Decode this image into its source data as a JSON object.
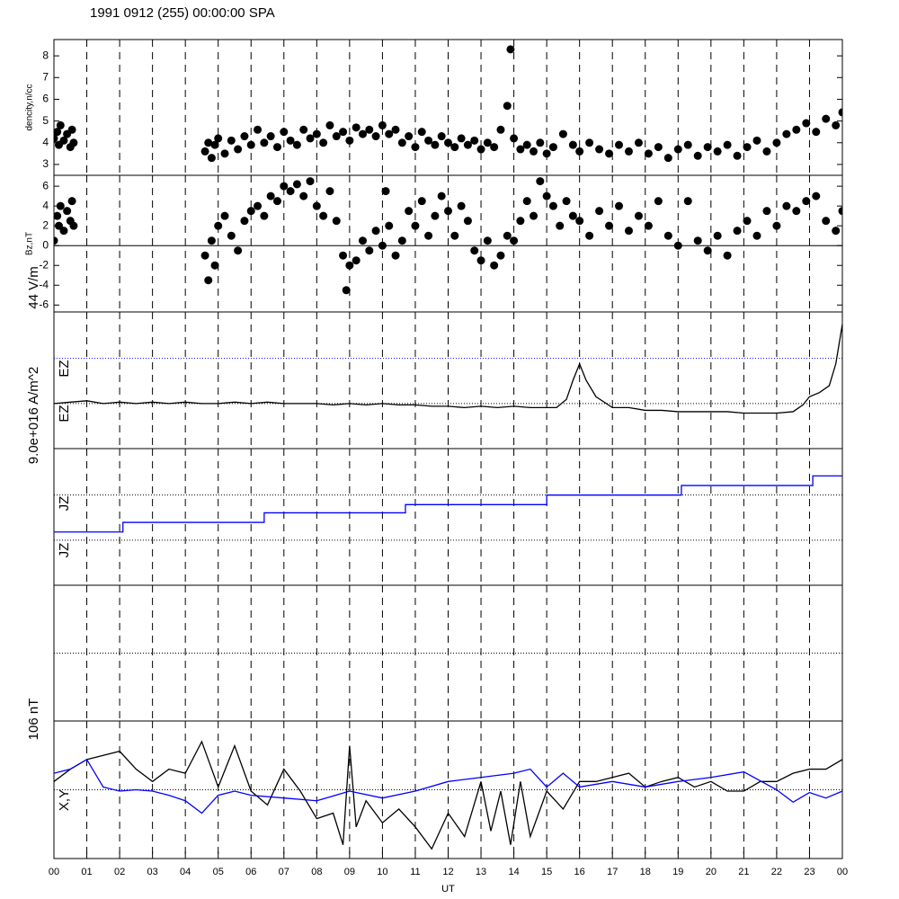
{
  "chart_data": [
    {
      "type": "scatter",
      "title": "1991 0912 (255) 00:00:00 SPA",
      "ylabel": "dencity,n/cc",
      "xlim": [
        0,
        24
      ],
      "ylim": [
        2.5,
        8.75
      ],
      "yticks": [
        3,
        4,
        5,
        6,
        7,
        8
      ],
      "color": "#000000",
      "x": [
        0,
        0.1,
        0.15,
        0.2,
        0.3,
        0.4,
        0.5,
        0.55,
        0.6,
        4.6,
        4.7,
        4.8,
        4.9,
        5.0,
        5.2,
        5.4,
        5.6,
        5.8,
        6.0,
        6.2,
        6.4,
        6.6,
        6.8,
        7.0,
        7.2,
        7.4,
        7.6,
        7.8,
        8.0,
        8.2,
        8.4,
        8.6,
        8.8,
        9.0,
        9.2,
        9.4,
        9.6,
        9.8,
        10.0,
        10.2,
        10.4,
        10.6,
        10.8,
        11.0,
        11.2,
        11.4,
        11.6,
        11.8,
        12.0,
        12.2,
        12.4,
        12.6,
        12.8,
        13.0,
        13.2,
        13.4,
        13.6,
        13.8,
        13.9,
        14.0,
        14.2,
        14.4,
        14.6,
        14.8,
        15.0,
        15.2,
        15.5,
        15.8,
        16.0,
        16.3,
        16.6,
        16.9,
        17.2,
        17.5,
        17.8,
        18.1,
        18.4,
        18.7,
        19.0,
        19.3,
        19.6,
        19.9,
        20.2,
        20.5,
        20.8,
        21.1,
        21.4,
        21.7,
        22.0,
        22.3,
        22.6,
        22.9,
        23.2,
        23.5,
        23.8,
        24.0
      ],
      "values": [
        4.2,
        4.5,
        3.9,
        4.8,
        4.1,
        4.4,
        3.8,
        4.6,
        4.0,
        3.6,
        4.0,
        3.3,
        3.9,
        4.2,
        3.5,
        4.1,
        3.7,
        4.3,
        3.9,
        4.6,
        4.0,
        4.3,
        3.8,
        4.5,
        4.1,
        3.9,
        4.6,
        4.2,
        4.4,
        4.0,
        4.8,
        4.3,
        4.5,
        4.1,
        4.7,
        4.4,
        4.6,
        4.3,
        4.8,
        4.4,
        4.6,
        4.0,
        4.3,
        3.8,
        4.5,
        4.1,
        3.9,
        4.3,
        4.0,
        3.8,
        4.2,
        3.9,
        4.1,
        3.7,
        4.0,
        3.8,
        4.6,
        5.7,
        8.3,
        4.2,
        3.7,
        3.9,
        3.6,
        4.0,
        3.5,
        3.8,
        4.4,
        3.9,
        3.6,
        4.0,
        3.7,
        3.5,
        3.9,
        3.6,
        4.0,
        3.5,
        3.8,
        3.3,
        3.7,
        3.9,
        3.4,
        3.8,
        3.6,
        3.9,
        3.4,
        3.8,
        4.1,
        3.6,
        4.0,
        4.4,
        4.6,
        4.9,
        4.5,
        5.1,
        4.8,
        5.4
      ]
    },
    {
      "type": "scatter",
      "ylabel": "Bz,nT",
      "xlim": [
        0,
        24
      ],
      "ylim": [
        -6.7,
        7.1
      ],
      "yticks": [
        -6,
        -4,
        -2,
        0,
        2,
        4,
        6
      ],
      "color": "#000000",
      "reference_lines": [
        {
          "value": 0,
          "color": "#000000",
          "style": "solid"
        }
      ],
      "x": [
        0,
        0.1,
        0.15,
        0.2,
        0.3,
        0.4,
        0.5,
        0.55,
        0.6,
        4.6,
        4.7,
        4.8,
        4.9,
        5.0,
        5.2,
        5.4,
        5.6,
        5.8,
        6.0,
        6.2,
        6.4,
        6.6,
        6.8,
        7.0,
        7.2,
        7.4,
        7.6,
        7.8,
        8.0,
        8.2,
        8.4,
        8.6,
        8.8,
        8.9,
        9.0,
        9.2,
        9.4,
        9.6,
        9.8,
        10.0,
        10.1,
        10.2,
        10.4,
        10.6,
        10.8,
        11.0,
        11.2,
        11.4,
        11.6,
        11.8,
        12.0,
        12.2,
        12.4,
        12.6,
        12.8,
        13.0,
        13.2,
        13.4,
        13.6,
        13.8,
        14.0,
        14.2,
        14.4,
        14.6,
        14.8,
        15.0,
        15.2,
        15.4,
        15.6,
        15.8,
        16.0,
        16.3,
        16.6,
        16.9,
        17.2,
        17.5,
        17.8,
        18.1,
        18.4,
        18.7,
        19.0,
        19.3,
        19.6,
        19.9,
        20.2,
        20.5,
        20.8,
        21.1,
        21.4,
        21.7,
        22.0,
        22.3,
        22.6,
        22.9,
        23.2,
        23.5,
        23.8,
        24.0
      ],
      "values": [
        0.5,
        3,
        2,
        4,
        1.5,
        3.5,
        2.5,
        4.5,
        2,
        -1,
        -3.5,
        0.5,
        -2,
        2,
        3,
        1,
        -0.5,
        2.5,
        3.5,
        4,
        3,
        5,
        4.5,
        6,
        5.5,
        6.2,
        5,
        6.5,
        4,
        3,
        5.5,
        2.5,
        -1,
        -4.5,
        -2,
        -1.5,
        0.5,
        -0.5,
        1.5,
        0,
        5.5,
        2,
        -1,
        0.5,
        3.5,
        2,
        4.5,
        1,
        3,
        5,
        3.5,
        1,
        4,
        2.5,
        -0.5,
        -1.5,
        0.5,
        -2,
        -1,
        1,
        0.5,
        2.5,
        4.5,
        3,
        6.5,
        5,
        4,
        2,
        4.5,
        3,
        2.5,
        1,
        3.5,
        2,
        4,
        1.5,
        3,
        2,
        4.5,
        1,
        0,
        4.5,
        0.5,
        -0.5,
        1,
        -1,
        1.5,
        2.5,
        1,
        3.5,
        2,
        4,
        3.5,
        4.5,
        5,
        2.5,
        1.5,
        3.5
      ]
    },
    {
      "type": "line",
      "scale_label": "44 V/m",
      "labels": [
        "EZ",
        "EZ"
      ],
      "xlim": [
        0,
        24
      ],
      "ylim": [
        0,
        1
      ],
      "reference_lines": [
        {
          "value": 0.66,
          "color": "#0000ff",
          "style": "dotted"
        },
        {
          "value": 0.33,
          "color": "#000000",
          "style": "dotted"
        }
      ],
      "series": [
        {
          "color": "#000000",
          "x": [
            0,
            0.5,
            1,
            1.5,
            2,
            2.5,
            3,
            3.5,
            4,
            4.5,
            5,
            5.5,
            6,
            6.5,
            7,
            7.5,
            8,
            8.5,
            9,
            9.5,
            10,
            10.5,
            11,
            11.5,
            12,
            12.5,
            13,
            13.5,
            14,
            14.5,
            15,
            15.3,
            15.6,
            15.8,
            16,
            16.2,
            16.5,
            17,
            17.5,
            18,
            18.5,
            19,
            19.5,
            20,
            20.5,
            21,
            21.5,
            22,
            22.5,
            22.8,
            23,
            23.3,
            23.6,
            23.8,
            24
          ],
          "values": [
            0.33,
            0.34,
            0.35,
            0.33,
            0.34,
            0.33,
            0.34,
            0.33,
            0.34,
            0.33,
            0.33,
            0.34,
            0.33,
            0.34,
            0.33,
            0.33,
            0.33,
            0.32,
            0.33,
            0.32,
            0.33,
            0.32,
            0.32,
            0.31,
            0.31,
            0.3,
            0.31,
            0.3,
            0.31,
            0.3,
            0.3,
            0.3,
            0.36,
            0.5,
            0.62,
            0.5,
            0.38,
            0.3,
            0.3,
            0.28,
            0.28,
            0.27,
            0.27,
            0.27,
            0.27,
            0.26,
            0.26,
            0.26,
            0.27,
            0.32,
            0.38,
            0.41,
            0.46,
            0.62,
            0.91
          ]
        }
      ]
    },
    {
      "type": "line",
      "scale_label": "9.0e+016 A/m^2",
      "labels": [
        "JZ",
        "JZ"
      ],
      "xlim": [
        0,
        24
      ],
      "ylim": [
        0,
        1
      ],
      "reference_lines": [
        {
          "value": 0.66,
          "color": "#000000",
          "style": "dotted"
        },
        {
          "value": 0.33,
          "color": "#000000",
          "style": "dotted"
        }
      ],
      "series": [
        {
          "color": "#0000ff",
          "x": [
            0,
            2.1,
            2.1,
            6.4,
            6.4,
            10.7,
            10.7,
            15,
            15,
            19.1,
            19.1,
            23.1,
            23.1,
            24
          ],
          "values": [
            0.39,
            0.39,
            0.46,
            0.46,
            0.53,
            0.53,
            0.59,
            0.59,
            0.66,
            0.66,
            0.73,
            0.73,
            0.8,
            0.8
          ]
        }
      ]
    },
    {
      "type": "line",
      "xlim": [
        0,
        24
      ],
      "ylim": [
        0,
        1
      ],
      "reference_lines": [
        {
          "value": 0.5,
          "color": "#000000",
          "style": "dotted"
        }
      ],
      "series": []
    },
    {
      "type": "line",
      "scale_label": "106 nT",
      "labels": [
        "X,Y"
      ],
      "xlabel": "UT",
      "xlim": [
        0,
        24
      ],
      "ylim": [
        0,
        1
      ],
      "reference_lines": [
        {
          "value": 0.5,
          "color": "#000000",
          "style": "dotted"
        }
      ],
      "xticks": [
        {
          "value": 0,
          "label": "00"
        },
        {
          "value": 1,
          "label": "01"
        },
        {
          "value": 2,
          "label": "02"
        },
        {
          "value": 3,
          "label": "03"
        },
        {
          "value": 4,
          "label": "04"
        },
        {
          "value": 5,
          "label": "05"
        },
        {
          "value": 6,
          "label": "06"
        },
        {
          "value": 7,
          "label": "07"
        },
        {
          "value": 8,
          "label": "08"
        },
        {
          "value": 9,
          "label": "09"
        },
        {
          "value": 10,
          "label": "10"
        },
        {
          "value": 11,
          "label": "11"
        },
        {
          "value": 12,
          "label": "12"
        },
        {
          "value": 13,
          "label": "13"
        },
        {
          "value": 14,
          "label": "14"
        },
        {
          "value": 15,
          "label": "15"
        },
        {
          "value": 16,
          "label": "16"
        },
        {
          "value": 17,
          "label": "17"
        },
        {
          "value": 18,
          "label": "18"
        },
        {
          "value": 19,
          "label": "19"
        },
        {
          "value": 20,
          "label": "20"
        },
        {
          "value": 21,
          "label": "21"
        },
        {
          "value": 22,
          "label": "22"
        },
        {
          "value": 23,
          "label": "23"
        },
        {
          "value": 24,
          "label": "00"
        }
      ],
      "series": [
        {
          "color": "#000000",
          "x": [
            0,
            0.5,
            1,
            1.5,
            2,
            2.5,
            3,
            3.5,
            4,
            4.5,
            5,
            5.5,
            6,
            6.5,
            7,
            7.5,
            8,
            8.5,
            8.8,
            9,
            9.2,
            9.5,
            10,
            10.5,
            11,
            11.5,
            12,
            12.5,
            13,
            13.3,
            13.6,
            13.9,
            14.2,
            14.5,
            15,
            15.5,
            16,
            16.5,
            17,
            17.5,
            18,
            18.5,
            19,
            19.5,
            20,
            20.5,
            21,
            21.5,
            22,
            22.5,
            23,
            23.5,
            24
          ],
          "values": [
            0.56,
            0.65,
            0.72,
            0.75,
            0.78,
            0.65,
            0.56,
            0.65,
            0.62,
            0.85,
            0.52,
            0.82,
            0.49,
            0.39,
            0.65,
            0.49,
            0.29,
            0.33,
            0.1,
            0.82,
            0.23,
            0.42,
            0.26,
            0.36,
            0.23,
            0.07,
            0.33,
            0.16,
            0.56,
            0.2,
            0.49,
            0.1,
            0.56,
            0.16,
            0.49,
            0.36,
            0.56,
            0.56,
            0.59,
            0.62,
            0.52,
            0.56,
            0.59,
            0.52,
            0.56,
            0.49,
            0.49,
            0.56,
            0.56,
            0.62,
            0.65,
            0.65,
            0.72
          ]
        },
        {
          "color": "#0000ff",
          "x": [
            0,
            0.5,
            1,
            1.5,
            2,
            2.5,
            3,
            3.5,
            4,
            4.5,
            5,
            5.5,
            6,
            7,
            8,
            9,
            10,
            11,
            12,
            13,
            14,
            14.5,
            15,
            15.5,
            16,
            17,
            18,
            19,
            20,
            21,
            22,
            22.5,
            23,
            23.5,
            24
          ],
          "values": [
            0.62,
            0.65,
            0.72,
            0.52,
            0.49,
            0.5,
            0.49,
            0.46,
            0.42,
            0.33,
            0.46,
            0.49,
            0.46,
            0.44,
            0.42,
            0.49,
            0.44,
            0.49,
            0.56,
            0.59,
            0.62,
            0.65,
            0.52,
            0.62,
            0.52,
            0.56,
            0.52,
            0.56,
            0.59,
            0.63,
            0.5,
            0.41,
            0.48,
            0.44,
            0.49
          ]
        }
      ]
    }
  ]
}
